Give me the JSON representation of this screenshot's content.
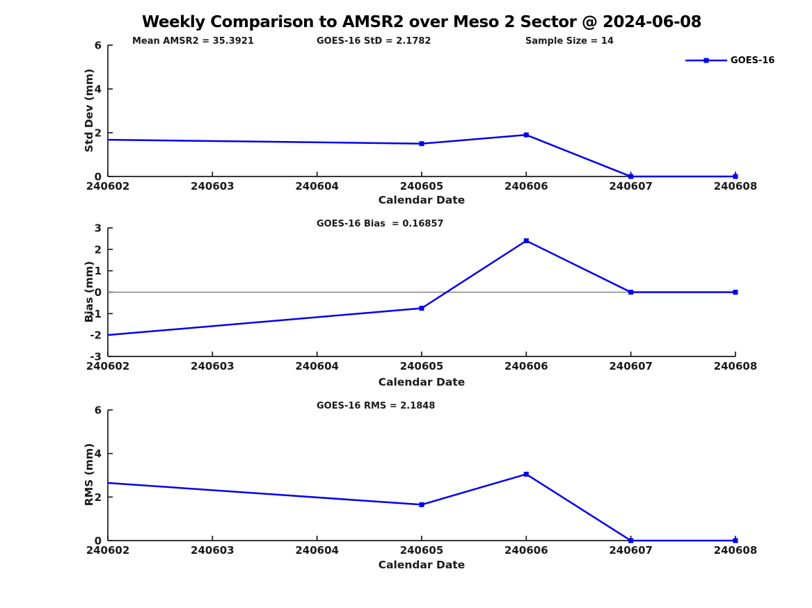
{
  "title": "Weekly Comparison to AMSR2 over Meso 2 Sector @ 2024-06-08",
  "legend": {
    "label": "GOES-16"
  },
  "colors": {
    "line": "#0000EE",
    "axis": "#1a1a1a",
    "tick_label": "#1a1a1a",
    "zero_line": "#808080",
    "background": "#ffffff"
  },
  "stats": {
    "mean_amsr2": 35.3921,
    "goes16_std": 2.1782,
    "sample_size": 14,
    "goes16_bias": 0.16857,
    "goes16_rms": 2.1848
  },
  "chart_data": [
    {
      "id": "stddev",
      "type": "line",
      "ylabel": "Std Dev (mm)",
      "xlabel": "Calendar Date",
      "annotations": [
        {
          "text": "Mean AMSR2 = 35.3921"
        },
        {
          "text": "GOES-16 StD = 2.1782"
        },
        {
          "text": "Sample Size = 14"
        }
      ],
      "xticks": [
        "240602",
        "240603",
        "240604",
        "240605",
        "240606",
        "240607",
        "240608"
      ],
      "ylim": [
        0,
        6
      ],
      "yticks": [
        0,
        2,
        4,
        6
      ],
      "zero_line": false,
      "legend_position": "upper-right",
      "grid": false,
      "series": [
        {
          "name": "GOES-16",
          "points": [
            {
              "x": "240602",
              "y": 1.68,
              "marker": false
            },
            {
              "x": "240605",
              "y": 1.5,
              "marker": true
            },
            {
              "x": "240606",
              "y": 1.9,
              "marker": true
            },
            {
              "x": "240607",
              "y": 0,
              "marker": true
            },
            {
              "x": "240608",
              "y": 0,
              "marker": true
            }
          ]
        }
      ]
    },
    {
      "id": "bias",
      "type": "line",
      "ylabel": "Bias (mm)",
      "xlabel": "Calendar Date",
      "annotations": [
        {
          "text": "GOES-16 Bias  = 0.16857"
        }
      ],
      "xticks": [
        "240602",
        "240603",
        "240604",
        "240605",
        "240606",
        "240607",
        "240608"
      ],
      "ylim": [
        -3,
        3
      ],
      "yticks": [
        -3,
        -2,
        -1,
        0,
        1,
        2,
        3
      ],
      "zero_line": true,
      "grid": false,
      "series": [
        {
          "name": "GOES-16",
          "points": [
            {
              "x": "240602",
              "y": -2.0,
              "marker": false
            },
            {
              "x": "240605",
              "y": -0.75,
              "marker": true
            },
            {
              "x": "240606",
              "y": 2.4,
              "marker": true
            },
            {
              "x": "240607",
              "y": 0,
              "marker": true
            },
            {
              "x": "240608",
              "y": 0,
              "marker": true
            }
          ]
        }
      ]
    },
    {
      "id": "rms",
      "type": "line",
      "ylabel": "RMS (mm)",
      "xlabel": "Calendar Date",
      "annotations": [
        {
          "text": "GOES-16 RMS = 2.1848"
        }
      ],
      "xticks": [
        "240602",
        "240603",
        "240604",
        "240605",
        "240606",
        "240607",
        "240608"
      ],
      "ylim": [
        0,
        6
      ],
      "yticks": [
        0,
        2,
        4,
        6
      ],
      "zero_line": false,
      "grid": false,
      "series": [
        {
          "name": "GOES-16",
          "points": [
            {
              "x": "240602",
              "y": 2.65,
              "marker": false
            },
            {
              "x": "240605",
              "y": 1.65,
              "marker": true
            },
            {
              "x": "240606",
              "y": 3.05,
              "marker": true
            },
            {
              "x": "240607",
              "y": 0,
              "marker": true
            },
            {
              "x": "240608",
              "y": 0,
              "marker": true
            }
          ]
        }
      ]
    }
  ]
}
